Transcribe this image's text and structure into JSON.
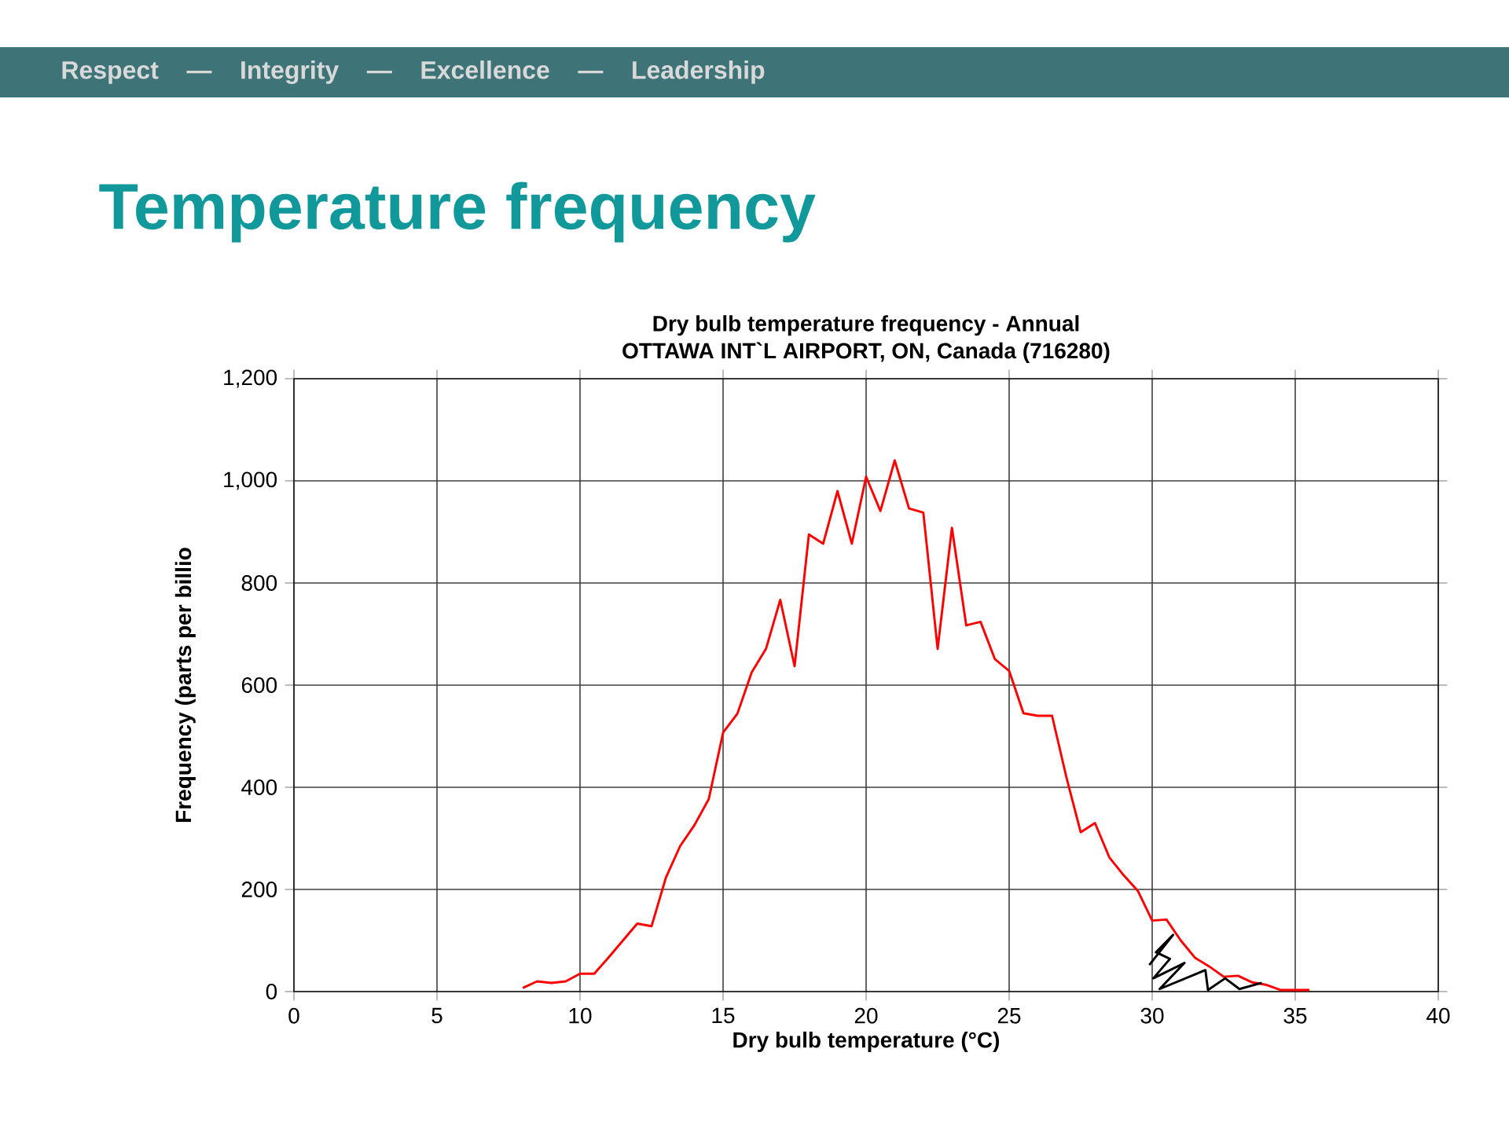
{
  "chart_data": {
    "type": "line",
    "title": "Temperature frequency",
    "subtitle": "Dry bulb temperature frequency - Annual",
    "annotations": [
      "Respect — Integrity — Excellence — Leadership",
      "OTTAWA INT`L AIRPORT, ON, Canada (716280)"
    ],
    "xlabel": "Dry bulb temperature (°C)",
    "ylabel": "Frequency (parts per billio",
    "xlim": [
      0,
      40
    ],
    "xticks": [
      0,
      5,
      10,
      15,
      20,
      25,
      30,
      35,
      40
    ],
    "ylim": [
      0,
      1200
    ],
    "yticks": [
      0,
      200,
      400,
      600,
      800,
      {
        "value": 1000,
        "label": "1,000"
      },
      {
        "value": 1200,
        "label": "1,200"
      }
    ],
    "grid": true,
    "marker": "none",
    "line_style": "solid",
    "series": [
      {
        "color": "#ff0000",
        "x": [
          8,
          8.5,
          9,
          9.5,
          10,
          10.5,
          11,
          11.5,
          12,
          12.5,
          13,
          13.5,
          14,
          14.5,
          15,
          15.5,
          16,
          16.5,
          17,
          17.5,
          18,
          18.5,
          19,
          19.5,
          20,
          20.5,
          21,
          21.5,
          22,
          22.5,
          23,
          23.5,
          24,
          24.5,
          25,
          25.5,
          26,
          26.5,
          27,
          27.5,
          28,
          28.5,
          29,
          29.5,
          30,
          30.5,
          31,
          31.5,
          32,
          32.5,
          33,
          33.5,
          34,
          34.5,
          35,
          35.5
        ],
        "values": [
          7,
          20,
          17,
          20,
          35,
          35,
          67,
          100,
          133,
          128,
          223,
          285,
          326,
          377,
          507,
          544,
          625,
          671,
          767,
          637,
          895,
          877,
          980,
          877,
          1008,
          941,
          1040,
          946,
          938,
          671,
          908,
          717,
          724,
          651,
          628,
          545,
          540,
          540,
          420,
          312,
          330,
          263,
          228,
          197,
          139,
          141,
          100,
          66,
          49,
          29,
          31,
          18,
          13,
          3,
          3,
          3
        ]
      },
      {
        "color": "#000000",
        "x": [
          29.9,
          30.73,
          30.13,
          30.62,
          30.04,
          31.13,
          30.26,
          31.86,
          31.95,
          32.55,
          33.05,
          33.83
        ],
        "values": [
          52,
          111,
          77,
          64,
          26,
          56,
          5,
          42,
          3,
          26,
          5,
          17
        ]
      }
    ]
  }
}
